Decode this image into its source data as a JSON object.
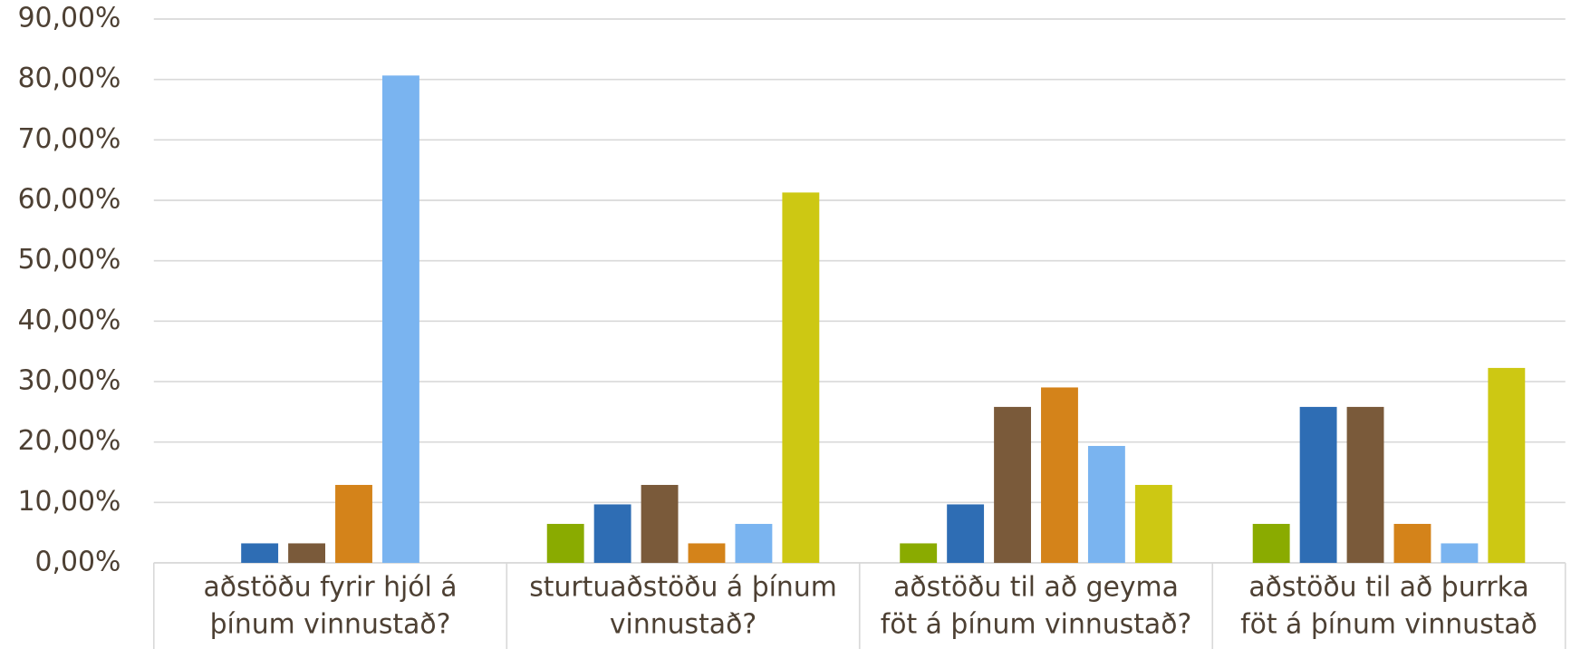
{
  "chart_data": {
    "type": "bar",
    "categories": [
      "aðstöðu fyrir hjól á þínum vinnustað?",
      "sturtuaðstöðu á þínum vinnustað?",
      "aðstöðu til að geyma föt á þínum vinnustað?",
      "aðstöðu til að þurrka föt á þínum vinnustað"
    ],
    "series": [
      {
        "color": "#8aab00",
        "values": [
          0,
          6.45,
          3.23,
          6.45
        ]
      },
      {
        "color": "#2e6db4",
        "values": [
          3.23,
          9.68,
          9.68,
          25.81
        ]
      },
      {
        "color": "#7a5a3a",
        "values": [
          3.23,
          12.9,
          25.81,
          25.81
        ]
      },
      {
        "color": "#d4831a",
        "values": [
          12.9,
          3.23,
          29.03,
          6.45
        ]
      },
      {
        "color": "#7ab4f0",
        "values": [
          80.65,
          6.45,
          19.35,
          3.23
        ]
      },
      {
        "color": "#cdc813",
        "values": [
          0,
          61.29,
          12.9,
          32.26
        ]
      }
    ],
    "ylim": [
      0,
      90
    ],
    "yticks": [
      {
        "value": 0,
        "label": "0,00%"
      },
      {
        "value": 10,
        "label": "10,00%"
      },
      {
        "value": 20,
        "label": "20,00%"
      },
      {
        "value": 30,
        "label": "30,00%"
      },
      {
        "value": 40,
        "label": "40,00%"
      },
      {
        "value": 50,
        "label": "50,00%"
      },
      {
        "value": 60,
        "label": "60,00%"
      },
      {
        "value": 70,
        "label": "70,00%"
      },
      {
        "value": 80,
        "label": "80,00%"
      },
      {
        "value": 90,
        "label": "90,00%"
      }
    ],
    "grid": true
  }
}
